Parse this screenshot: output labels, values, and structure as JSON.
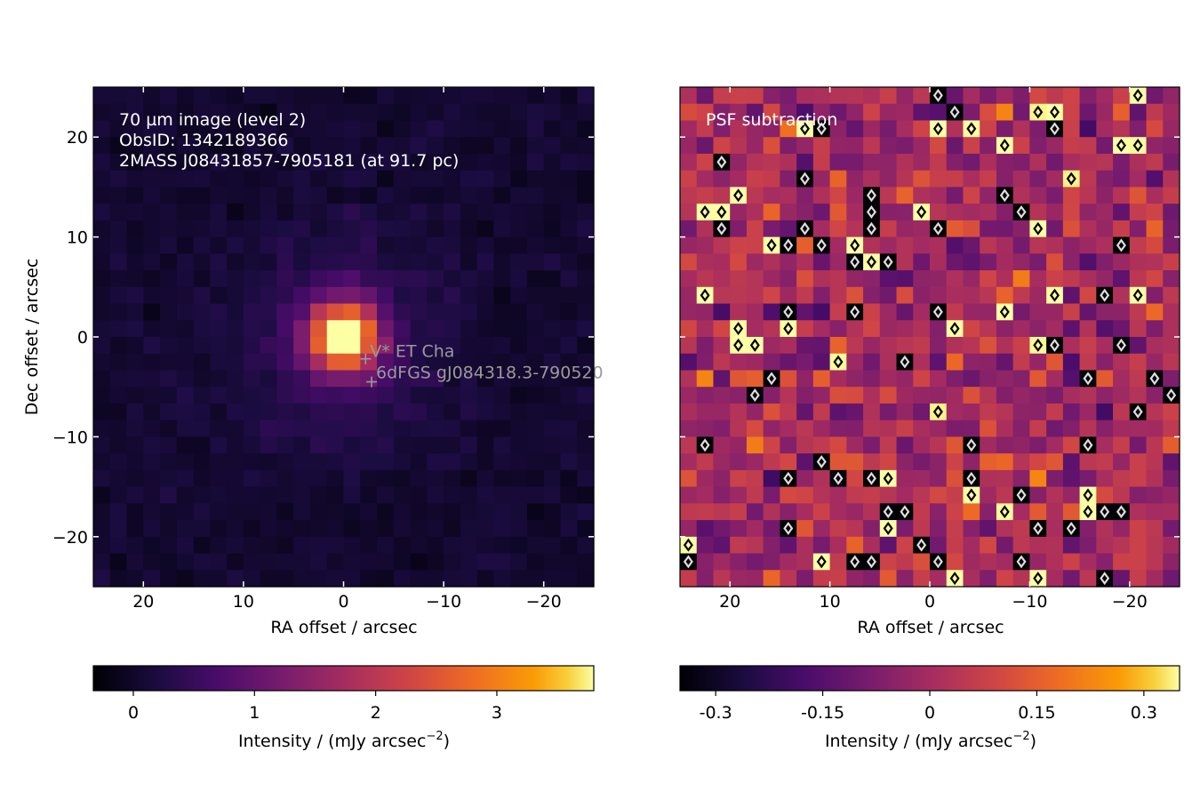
{
  "chart_data": [
    {
      "type": "heatmap",
      "panel": "left",
      "annotation_lines": [
        "70 µm image (level 2)",
        "ObsID: 1342189366",
        "2MASS J08431857-7905181 (at 91.7 pc)"
      ],
      "xlabel": "RA offset / arcsec",
      "ylabel": "Dec offset / arcsec",
      "xlim": [
        25,
        -25
      ],
      "ylim": [
        -25,
        25
      ],
      "xticks": [
        20,
        10,
        0,
        -10,
        -20
      ],
      "yticks": [
        20,
        10,
        0,
        -10,
        -20
      ],
      "xtick_labels": [
        "20",
        "10",
        "0",
        "−10",
        "−20"
      ],
      "ytick_labels": [
        "20",
        "10",
        "0",
        "−10",
        "−20"
      ],
      "colormap": "inferno",
      "value_range": [
        -0.33,
        3.8
      ],
      "source": {
        "ra_offset": 0,
        "dec_offset": 0,
        "peak_intensity": 3.8,
        "fwhm_arcsec": 5.5
      },
      "markers": [
        {
          "label": "V* ET Cha",
          "ra_offset": -2.2,
          "dec_offset": -2.2
        },
        {
          "label": "6dFGS gJ084318.3-790520",
          "ra_offset": -2.8,
          "dec_offset": -4.5
        }
      ],
      "colorbar": {
        "label": "Intensity / (mJy arcsec",
        "label_superscript": "−2",
        "label_close": ")",
        "range": [
          -0.33,
          3.8
        ],
        "ticks": [
          0,
          1,
          2,
          3
        ],
        "tick_labels": [
          "0",
          "1",
          "2",
          "3"
        ]
      }
    },
    {
      "type": "heatmap",
      "panel": "right",
      "annotation_lines": [
        "PSF subtraction"
      ],
      "xlabel": "RA offset / arcsec",
      "xlim": [
        25,
        -25
      ],
      "ylim": [
        -25,
        25
      ],
      "xticks": [
        20,
        10,
        0,
        -10,
        -20
      ],
      "xtick_labels": [
        "20",
        "10",
        "0",
        "−10",
        "−20"
      ],
      "colormap": "inferno",
      "value_range": [
        -0.35,
        0.35
      ],
      "contours": {
        "negative_color": "#dddddd",
        "positive_color": "#000000"
      },
      "colorbar": {
        "label": "Intensity / (mJy arcsec",
        "label_superscript": "−2",
        "label_close": ")",
        "range": [
          -0.35,
          0.35
        ],
        "ticks": [
          -0.3,
          -0.15,
          0,
          0.15,
          0.3
        ],
        "tick_labels": [
          "-0.3",
          "-0.15",
          "0",
          "0.15",
          "0.3"
        ]
      }
    }
  ]
}
